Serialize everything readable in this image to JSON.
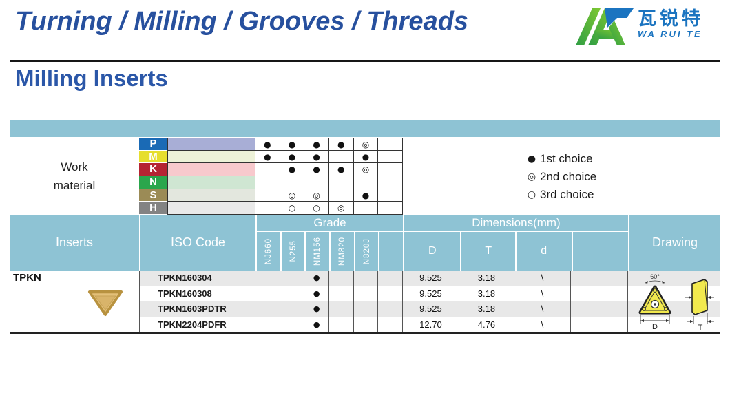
{
  "header": {
    "title": "Turning / Milling / Grooves / Threads",
    "logo": {
      "cn": "瓦锐特",
      "en": "WA RUI TE"
    }
  },
  "section_title": "Milling Inserts",
  "colors": {
    "accent_blue": "#27509e",
    "section_blue": "#2b57a8",
    "table_header_blue": "#8ec3d4",
    "stripe_gray": "#e8e8e8",
    "insert_tan": "#d9b46a",
    "drawing_yellow": "#f2e94e"
  },
  "work_material": {
    "label_line1": "Work",
    "label_line2": "material",
    "rows": [
      {
        "code": "P",
        "label_color": "#1a6ab5",
        "band_color": "#a8aed6",
        "marks": [
          "●",
          "●",
          "●",
          "●",
          "◎",
          ""
        ]
      },
      {
        "code": "M",
        "label_color": "#e6de2e",
        "band_color": "#edf2d8",
        "marks": [
          "●",
          "●",
          "●",
          "",
          "●",
          ""
        ]
      },
      {
        "code": "K",
        "label_color": "#b52433",
        "band_color": "#f8c9cd",
        "marks": [
          "",
          "●",
          "●",
          "●",
          "◎",
          ""
        ]
      },
      {
        "code": "N",
        "label_color": "#2aa64c",
        "band_color": "#cfe6d2",
        "marks": [
          "",
          "",
          "",
          "",
          "",
          ""
        ]
      },
      {
        "code": "S",
        "label_color": "#9b8b56",
        "band_color": "#e3e7de",
        "marks": [
          "",
          "◎",
          "◎",
          "",
          "●",
          ""
        ]
      },
      {
        "code": "H",
        "label_color": "#838383",
        "band_color": "#e9e9e9",
        "marks": [
          "",
          "○",
          "○",
          "◎",
          "",
          ""
        ]
      }
    ]
  },
  "legend": [
    {
      "symbol": "●",
      "label": "1st choice"
    },
    {
      "symbol": "◎",
      "label": "2nd choice"
    },
    {
      "symbol": "○",
      "label": "3rd choice"
    }
  ],
  "table": {
    "headers": {
      "inserts": "Inserts",
      "iso": "ISO Code",
      "grade": "Grade",
      "dimensions": "Dimensions(mm)",
      "drawing": "Drawing"
    },
    "grade_columns": [
      "NJ660",
      "N255",
      "NM156",
      "NM820",
      "N820J",
      ""
    ],
    "dim_columns": [
      "D",
      "T",
      "d",
      ""
    ],
    "group": "TPKN",
    "rows": [
      {
        "iso": "TPKN160304",
        "marks": [
          "",
          "",
          "●",
          "",
          "",
          ""
        ],
        "D": "9.525",
        "T": "3.18",
        "d": "\\",
        "extra": ""
      },
      {
        "iso": "TPKN160308",
        "marks": [
          "",
          "",
          "●",
          "",
          "",
          ""
        ],
        "D": "9.525",
        "T": "3.18",
        "d": "\\",
        "extra": ""
      },
      {
        "iso": "TPKN1603PDTR",
        "marks": [
          "",
          "",
          "●",
          "",
          "",
          ""
        ],
        "D": "9.525",
        "T": "3.18",
        "d": "\\",
        "extra": ""
      },
      {
        "iso": "TPKN2204PDFR",
        "marks": [
          "",
          "",
          "●",
          "",
          "",
          ""
        ],
        "D": "12.70",
        "T": "4.76",
        "d": "\\",
        "extra": ""
      }
    ],
    "drawing_labels": {
      "angle": "60°",
      "width": "D",
      "thickness": "T"
    }
  }
}
